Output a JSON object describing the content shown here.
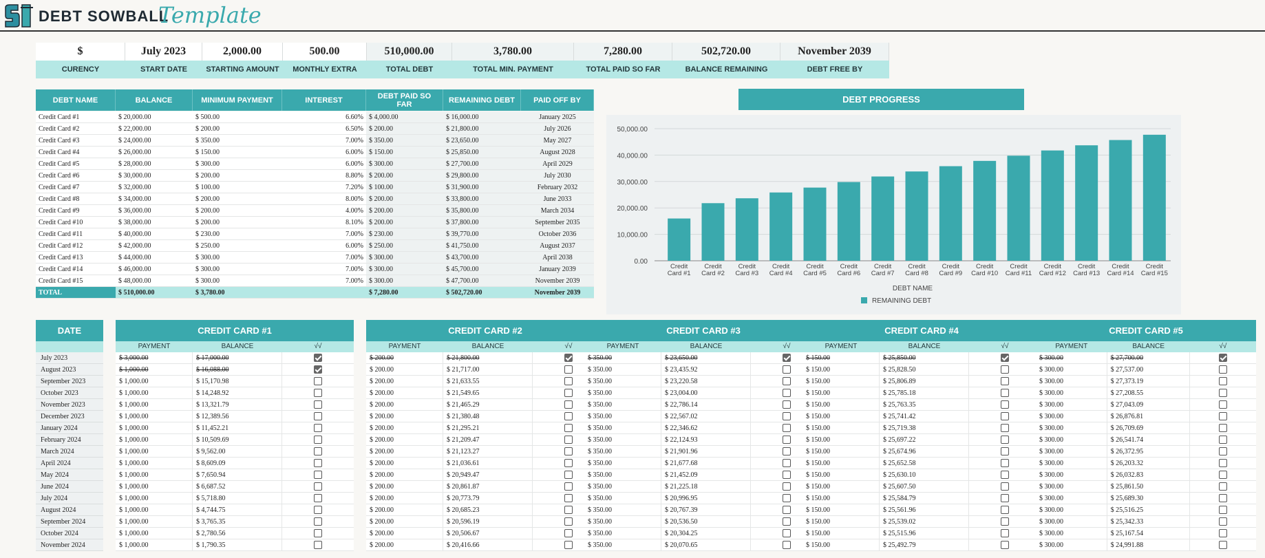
{
  "header": {
    "title_main": "DEBT SOWBALL",
    "title_script": "Template"
  },
  "summary": [
    {
      "value": "$",
      "label": "CURENCY"
    },
    {
      "value": "July 2023",
      "label": "START DATE"
    },
    {
      "value": "2,000.00",
      "label": "STARTING AMOUNT"
    },
    {
      "value": "500.00",
      "label": "MONTHLY EXTRA"
    },
    {
      "value": "510,000.00",
      "label": "TOTAL DEBT"
    },
    {
      "value": "3,780.00",
      "label": "TOTAL MIN. PAYMENT"
    },
    {
      "value": "7,280.00",
      "label": "TOTAL PAID SO FAR"
    },
    {
      "value": "502,720.00",
      "label": "BALANCE REMAINING"
    },
    {
      "value": "November 2039",
      "label": "DEBT FREE BY"
    }
  ],
  "debt_table": {
    "headers": [
      "DEBT NAME",
      "BALANCE",
      "MINIMUM PAYMENT",
      "INTEREST",
      "DEBT PAID SO FAR",
      "REMAINING DEBT",
      "PAID OFF BY"
    ],
    "rows": [
      [
        "Credit Card #1",
        "$  20,000.00",
        "$  500.00",
        "6.60%",
        "$  4,000.00",
        "$  16,000.00",
        "January 2025"
      ],
      [
        "Credit Card #2",
        "$  22,000.00",
        "$  200.00",
        "6.50%",
        "$  200.00",
        "$  21,800.00",
        "July 2026"
      ],
      [
        "Credit Card #3",
        "$  24,000.00",
        "$  350.00",
        "7.00%",
        "$  350.00",
        "$  23,650.00",
        "May 2027"
      ],
      [
        "Credit Card #4",
        "$  26,000.00",
        "$  150.00",
        "6.00%",
        "$  150.00",
        "$  25,850.00",
        "August 2028"
      ],
      [
        "Credit Card #5",
        "$  28,000.00",
        "$  300.00",
        "6.00%",
        "$  300.00",
        "$  27,700.00",
        "April 2029"
      ],
      [
        "Credit Card #6",
        "$  30,000.00",
        "$  200.00",
        "8.80%",
        "$  200.00",
        "$  29,800.00",
        "July 2030"
      ],
      [
        "Credit Card #7",
        "$  32,000.00",
        "$  100.00",
        "7.20%",
        "$  100.00",
        "$  31,900.00",
        "February 2032"
      ],
      [
        "Credit Card #8",
        "$  34,000.00",
        "$  200.00",
        "8.00%",
        "$  200.00",
        "$  33,800.00",
        "June 2033"
      ],
      [
        "Credit Card #9",
        "$  36,000.00",
        "$  200.00",
        "4.00%",
        "$  200.00",
        "$  35,800.00",
        "March 2034"
      ],
      [
        "Credit Card #10",
        "$  38,000.00",
        "$  200.00",
        "8.10%",
        "$  200.00",
        "$  37,800.00",
        "September 2035"
      ],
      [
        "Credit Card #11",
        "$  40,000.00",
        "$  230.00",
        "7.00%",
        "$  230.00",
        "$  39,770.00",
        "October 2036"
      ],
      [
        "Credit Card #12",
        "$  42,000.00",
        "$  250.00",
        "6.00%",
        "$  250.00",
        "$  41,750.00",
        "August 2037"
      ],
      [
        "Credit Card #13",
        "$  44,000.00",
        "$  300.00",
        "7.00%",
        "$  300.00",
        "$  43,700.00",
        "April 2038"
      ],
      [
        "Credit Card #14",
        "$  46,000.00",
        "$  300.00",
        "7.00%",
        "$  300.00",
        "$  45,700.00",
        "January 2039"
      ],
      [
        "Credit Card #15",
        "$  48,000.00",
        "$  300.00",
        "7.00%",
        "$  300.00",
        "$  47,700.00",
        "November 2039"
      ]
    ],
    "total": [
      "TOTAL",
      "$  510,000.00",
      "$  3,780.00",
      "",
      "$  7,280.00",
      "$  502,720.00",
      "November 2039"
    ]
  },
  "chart_data": {
    "type": "bar",
    "title": "DEBT PROGRESS",
    "xlabel": "DEBT NAME",
    "ylabel": "",
    "ylim": [
      0,
      50000
    ],
    "yticks": [
      "0.00",
      "10,000.00",
      "20,000.00",
      "30,000.00",
      "40,000.00",
      "50,000.00"
    ],
    "categories": [
      "Credit Card #1",
      "Credit Card #2",
      "Credit Card #3",
      "Credit Card #4",
      "Credit Card #5",
      "Credit Card #6",
      "Credit Card #7",
      "Credit Card #8",
      "Credit Card #9",
      "Credit Card #10",
      "Credit Card #11",
      "Credit Card #12",
      "Credit Card #13",
      "Credit Card #14",
      "Credit Card #15"
    ],
    "series": [
      {
        "name": "REMAINING DEBT",
        "values": [
          16000,
          21800,
          23650,
          25850,
          27700,
          29800,
          31900,
          33800,
          35800,
          37800,
          39770,
          41750,
          43700,
          45700,
          47700
        ]
      }
    ],
    "bar_color": "#3aa9ad",
    "legend": "bottom",
    "grid": true
  },
  "payments": {
    "date_header": "DATE",
    "dates": [
      "July 2023",
      "August 2023",
      "September 2023",
      "October 2023",
      "November 2023",
      "December 2023",
      "January 2024",
      "February 2024",
      "March 2024",
      "April 2024",
      "May 2024",
      "June 2024",
      "July 2024",
      "August 2024",
      "September 2024",
      "October 2024",
      "November 2024"
    ],
    "sub_headers": [
      "PAYMENT",
      "BALANCE",
      "√√"
    ],
    "cards": [
      {
        "title": "CREDIT CARD #1",
        "payments": [
          "$  3,000.00",
          "$  1,000.00",
          "$  1,000.00",
          "$  1,000.00",
          "$  1,000.00",
          "$  1,000.00",
          "$  1,000.00",
          "$  1,000.00",
          "$  1,000.00",
          "$  1,000.00",
          "$  1,000.00",
          "$  1,000.00",
          "$  1,000.00",
          "$  1,000.00",
          "$  1,000.00",
          "$  1,000.00",
          "$  1,000.00"
        ],
        "balances": [
          "$  17,000.00",
          "$  16,088.00",
          "$  15,170.98",
          "$  14,248.92",
          "$  13,321.79",
          "$  12,389.56",
          "$  11,452.21",
          "$  10,509.69",
          "$  9,562.00",
          "$  8,609.09",
          "$  7,650.94",
          "$  6,687.52",
          "$  5,718.80",
          "$  4,744.75",
          "$  3,765.35",
          "$  2,780.56",
          "$  1,790.35"
        ],
        "checked": [
          true,
          true,
          false,
          false,
          false,
          false,
          false,
          false,
          false,
          false,
          false,
          false,
          false,
          false,
          false,
          false,
          false
        ]
      },
      {
        "title": "CREDIT CARD #2",
        "payments": [
          "$  200.00",
          "$  200.00",
          "$  200.00",
          "$  200.00",
          "$  200.00",
          "$  200.00",
          "$  200.00",
          "$  200.00",
          "$  200.00",
          "$  200.00",
          "$  200.00",
          "$  200.00",
          "$  200.00",
          "$  200.00",
          "$  200.00",
          "$  200.00",
          "$  200.00"
        ],
        "balances": [
          "$  21,800.00",
          "$  21,717.00",
          "$  21,633.55",
          "$  21,549.65",
          "$  21,465.29",
          "$  21,380.48",
          "$  21,295.21",
          "$  21,209.47",
          "$  21,123.27",
          "$  21,036.61",
          "$  20,949.47",
          "$  20,861.87",
          "$  20,773.79",
          "$  20,685.23",
          "$  20,596.19",
          "$  20,506.67",
          "$  20,416.66"
        ],
        "checked": [
          true,
          false,
          false,
          false,
          false,
          false,
          false,
          false,
          false,
          false,
          false,
          false,
          false,
          false,
          false,
          false,
          false
        ]
      },
      {
        "title": "CREDIT CARD #3",
        "payments": [
          "$  350.00",
          "$  350.00",
          "$  350.00",
          "$  350.00",
          "$  350.00",
          "$  350.00",
          "$  350.00",
          "$  350.00",
          "$  350.00",
          "$  350.00",
          "$  350.00",
          "$  350.00",
          "$  350.00",
          "$  350.00",
          "$  350.00",
          "$  350.00",
          "$  350.00"
        ],
        "balances": [
          "$  23,650.00",
          "$  23,435.92",
          "$  23,220.58",
          "$  23,004.00",
          "$  22,786.14",
          "$  22,567.02",
          "$  22,346.62",
          "$  22,124.93",
          "$  21,901.96",
          "$  21,677.68",
          "$  21,452.09",
          "$  21,225.18",
          "$  20,996.95",
          "$  20,767.39",
          "$  20,536.50",
          "$  20,304.25",
          "$  20,070.65"
        ],
        "checked": [
          true,
          false,
          false,
          false,
          false,
          false,
          false,
          false,
          false,
          false,
          false,
          false,
          false,
          false,
          false,
          false,
          false
        ]
      },
      {
        "title": "CREDIT CARD #4",
        "payments": [
          "$  150.00",
          "$  150.00",
          "$  150.00",
          "$  150.00",
          "$  150.00",
          "$  150.00",
          "$  150.00",
          "$  150.00",
          "$  150.00",
          "$  150.00",
          "$  150.00",
          "$  150.00",
          "$  150.00",
          "$  150.00",
          "$  150.00",
          "$  150.00",
          "$  150.00"
        ],
        "balances": [
          "$  25,850.00",
          "$  25,828.50",
          "$  25,806.89",
          "$  25,785.18",
          "$  25,763.35",
          "$  25,741.42",
          "$  25,719.38",
          "$  25,697.22",
          "$  25,674.96",
          "$  25,652.58",
          "$  25,630.10",
          "$  25,607.50",
          "$  25,584.79",
          "$  25,561.96",
          "$  25,539.02",
          "$  25,515.96",
          "$  25,492.79"
        ],
        "checked": [
          true,
          false,
          false,
          false,
          false,
          false,
          false,
          false,
          false,
          false,
          false,
          false,
          false,
          false,
          false,
          false,
          false
        ]
      },
      {
        "title": "CREDIT CARD #5",
        "payments": [
          "$  300.00",
          "$  300.00",
          "$  300.00",
          "$  300.00",
          "$  300.00",
          "$  300.00",
          "$  300.00",
          "$  300.00",
          "$  300.00",
          "$  300.00",
          "$  300.00",
          "$  300.00",
          "$  300.00",
          "$  300.00",
          "$  300.00",
          "$  300.00",
          "$  300.00"
        ],
        "balances": [
          "$  27,700.00",
          "$  27,537.00",
          "$  27,373.19",
          "$  27,208.55",
          "$  27,043.09",
          "$  26,876.81",
          "$  26,709.69",
          "$  26,541.74",
          "$  26,372.95",
          "$  26,203.32",
          "$  26,032.83",
          "$  25,861.50",
          "$  25,689.30",
          "$  25,516.25",
          "$  25,342.33",
          "$  25,167.54",
          "$  24,991.88"
        ],
        "checked": [
          true,
          false,
          false,
          false,
          false,
          false,
          false,
          false,
          false,
          false,
          false,
          false,
          false,
          false,
          false,
          false,
          false
        ]
      }
    ]
  }
}
